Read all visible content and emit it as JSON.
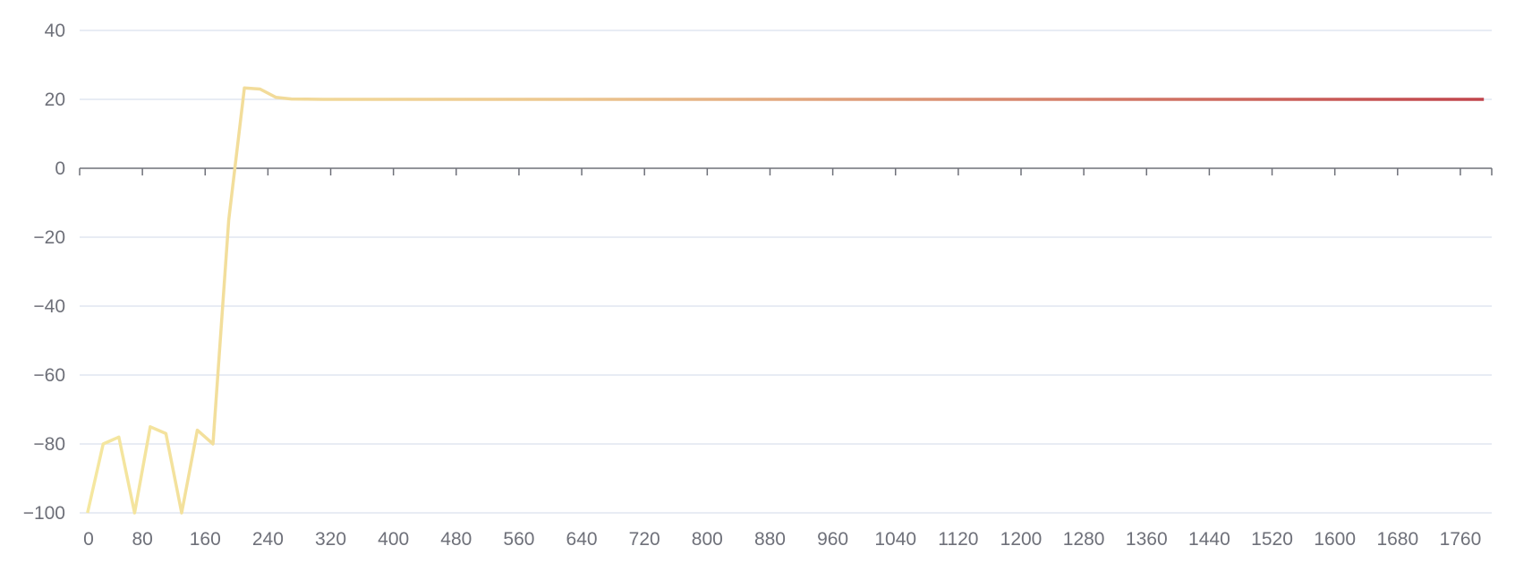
{
  "chart_data": {
    "type": "line",
    "title": "",
    "xlabel": "",
    "ylabel": "",
    "xlim": [
      0,
      1800
    ],
    "ylim": [
      -100,
      40
    ],
    "x_ticks": [
      0,
      80,
      160,
      240,
      320,
      400,
      480,
      560,
      640,
      720,
      800,
      880,
      960,
      1040,
      1120,
      1200,
      1280,
      1360,
      1440,
      1520,
      1600,
      1680,
      1760
    ],
    "y_ticks": [
      40,
      20,
      0,
      -20,
      -40,
      -60,
      -80,
      -100
    ],
    "grid": true,
    "legend": "none",
    "colors": {
      "gradient_start": "#f5e8a0",
      "gradient_mid": "#ecc68f",
      "gradient_end": "#c0434b",
      "grid": "#e0e6f1",
      "axis": "#6e7079",
      "label": "#6e7079"
    },
    "series": [
      {
        "x": [
          10,
          30,
          50,
          70,
          90,
          110,
          130,
          150,
          170,
          190,
          210,
          230,
          250,
          270,
          290,
          310,
          330,
          350,
          370,
          390,
          410,
          430,
          450,
          470,
          490,
          510,
          530,
          550,
          570,
          590,
          610,
          630,
          650,
          670,
          690,
          710,
          730,
          750,
          770,
          790,
          810,
          830,
          850,
          870,
          890,
          910,
          930,
          950,
          970,
          990,
          1010,
          1030,
          1050,
          1070,
          1090,
          1110,
          1130,
          1150,
          1170,
          1190,
          1210,
          1230,
          1250,
          1270,
          1290,
          1310,
          1330,
          1350,
          1370,
          1390,
          1410,
          1430,
          1450,
          1470,
          1490,
          1510,
          1530,
          1550,
          1570,
          1590,
          1610,
          1630,
          1650,
          1670,
          1690,
          1710,
          1730,
          1750,
          1770,
          1790
        ],
        "y": [
          -100,
          -80,
          -78,
          -100,
          -75,
          -77,
          -100,
          -76,
          -80,
          -15,
          23.3,
          23,
          20.6,
          20.1,
          20.05,
          20,
          20,
          20,
          20,
          20,
          20,
          20,
          20,
          20,
          20,
          20,
          20,
          20,
          20,
          20,
          20,
          20,
          20,
          20,
          20,
          20,
          20,
          20,
          20,
          20,
          20,
          20,
          20,
          20,
          20,
          20,
          20,
          20,
          20,
          20,
          20,
          20,
          20,
          20,
          20,
          20,
          20,
          20,
          20,
          20,
          20,
          20,
          20,
          20,
          20,
          20,
          20,
          20,
          20,
          20,
          20,
          20,
          20,
          20,
          20,
          20,
          20,
          20,
          20,
          20,
          20,
          20,
          20,
          20,
          20,
          20,
          20,
          20,
          20,
          20
        ]
      }
    ]
  }
}
